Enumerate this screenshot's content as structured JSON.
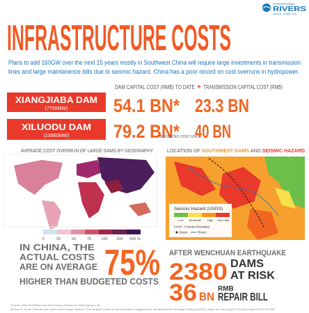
{
  "logo": {
    "line1": "INTERNATIONAL",
    "line2": "RIVERS",
    "line3": "PEOPLE • WATER • LIFE"
  },
  "title": "INFRASTRUCTURE COSTS",
  "intro": [
    "Plans to add 160GW over the next 15 years mostly in Southwest China will require large investments in transmission",
    "lines and large maintanence bills due to seismic hazard. China has a poor record on cost overruns in hydropower."
  ],
  "cost_table": {
    "headers": [
      "DAM CAPITAL COST (RMB) TO DATE",
      "+",
      "TRANSMISSION CAPITAL COST (RMB)"
    ],
    "rows": [
      {
        "dam": "XIANGJIABA DAM",
        "capacity": "(7750MW)",
        "dam_cost": "54.1 BN*",
        "transmission_cost": "23.3 BN"
      },
      {
        "dam": "XILUODU DAM",
        "capacity": "(13860MW)",
        "dam_cost": "79.2 BN*",
        "note": "*BUDGETED COST ONLY",
        "transmission_cost": "40 BN"
      }
    ]
  },
  "overrun_map": {
    "title": "AVERAGE COST OVERRUN OF LARGE DAMS BY GEOGRAPHY",
    "legend": [
      "0",
      "25",
      "50",
      "75",
      "100",
      "200",
      "500 %"
    ]
  },
  "seismic_map": {
    "title_parts": [
      "LOCATION OF ",
      "SOUTHWEST DAMS",
      " AND ",
      "SEISMIC HAZARD"
    ],
    "legend_title": "Seismic Hazard (USGS)",
    "legend_labels": [
      "Low",
      "Moderate",
      "High",
      "Very High"
    ],
    "key": [
      "Country Boundary",
      "Dams",
      "Rivers"
    ]
  },
  "china_stat": {
    "text": [
      "IN CHINA, THE",
      "ACTUAL COSTS",
      "ARE ON AVERAGE",
      "HIGHER THAN BUDGETED COSTS"
    ],
    "value": "75%"
  },
  "earthquake": {
    "title": "AFTER WENCHUAN EARTHQUAKE",
    "dams": "2380",
    "dams_label": [
      "DAMS",
      "AT RISK"
    ],
    "repair": "36",
    "repair_unit": "BN",
    "repair_label": [
      "RMB",
      "REPAIR BILL"
    ]
  },
  "sources": [
    "Sources: www.circleofblue.org, www.iea.org, www.gov.cn, www.usgs.gov, etc.",
    "Ansar A. et al. Should we build more large dams? The actual costs of hydropower megaproject development. Energy Policy (2014). http://dx.doi.org/10.1016/j.enpol.2013.10.069"
  ]
}
